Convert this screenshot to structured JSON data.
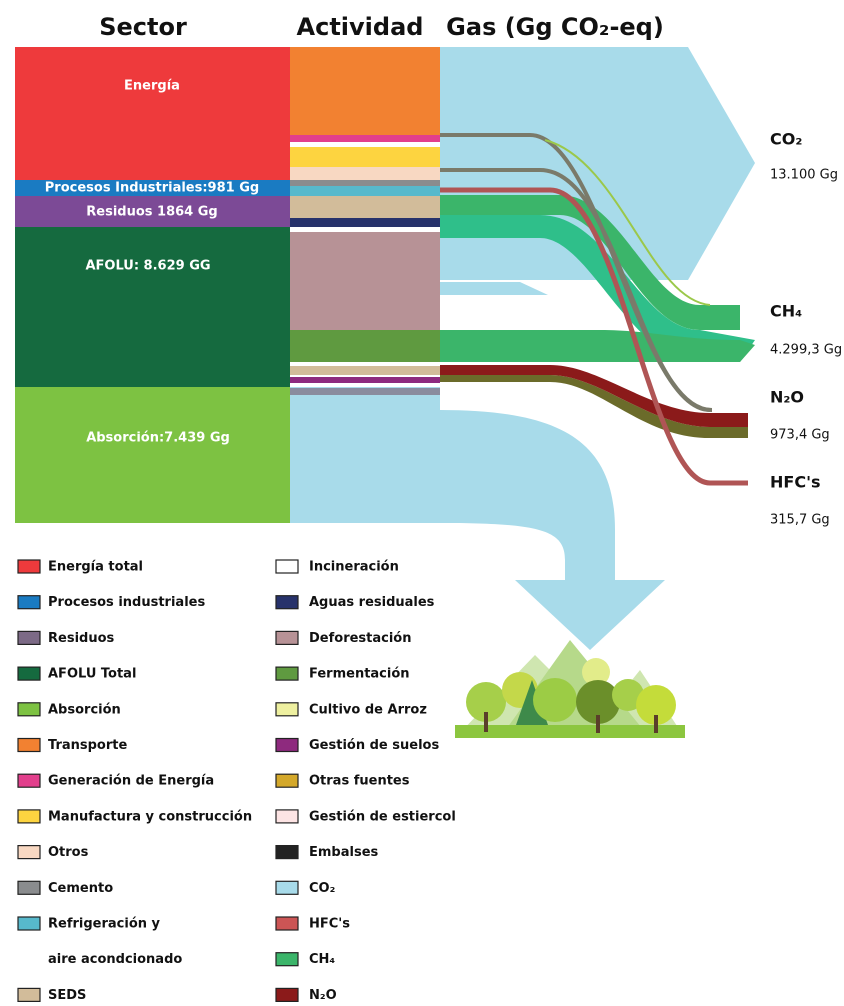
{
  "headers": [
    "Sector",
    "Actividad",
    "Gas (Gg CO₂-eq)"
  ],
  "sectors": [
    "Energía",
    "Procesos Industriales:981 Gg",
    "Residuos 1864 Gg",
    "AFOLU: 8.629 GG",
    "Absorción:7.439 Gg"
  ],
  "gases": [
    {
      "name": "CO₂",
      "value": "13.100 Gg"
    },
    {
      "name": "CH₄",
      "value": "4.299,3 Gg"
    },
    {
      "name": "N₂O",
      "value": "973,4 Gg"
    },
    {
      "name": "HFC's",
      "value": "315,7 Gg"
    }
  ],
  "legend": {
    "left": [
      {
        "label": "Energía total",
        "color": "#ee3a3c"
      },
      {
        "label": "Procesos industriales",
        "color": "#1a7bc2"
      },
      {
        "label": "Residuos",
        "color": "#7c6a86"
      },
      {
        "label": "AFOLU Total",
        "color": "#156a3f"
      },
      {
        "label": "Absorción",
        "color": "#7dc242"
      },
      {
        "label": "Transporte",
        "color": "#f28131"
      },
      {
        "label": "Generación de Energía",
        "color": "#e23f8c"
      },
      {
        "label": "Manufactura y construcción",
        "color": "#fdd440"
      },
      {
        "label": "Otros",
        "color": "#f8d8c2"
      },
      {
        "label": "Cemento",
        "color": "#8a8c8e"
      },
      {
        "label": "Refrigeración y",
        "color": "#57b9cc"
      },
      {
        "label": "aire acondcionado"
      },
      {
        "label": "SEDS",
        "color": "#d2bc9a"
      }
    ],
    "right": [
      {
        "label": "Incineración",
        "color": "#ffffff"
      },
      {
        "label": "Aguas residuales",
        "color": "#27326b"
      },
      {
        "label": "Deforestación",
        "color": "#b79296"
      },
      {
        "label": "Fermentación",
        "color": "#5f9a40"
      },
      {
        "label": "Cultivo de Arroz",
        "color": "#eef0a0"
      },
      {
        "label": "Gestión de suelos",
        "color": "#8e2a7e"
      },
      {
        "label": "Otras fuentes",
        "color": "#d4a82a"
      },
      {
        "label": "Gestión de estiercol",
        "color": "#fde4e4"
      },
      {
        "label": "Embalses",
        "color": "#222222"
      },
      {
        "label": "CO₂",
        "color": "#a8dbea"
      },
      {
        "label": "HFC's",
        "color": "#cc5555"
      },
      {
        "label": "CH₄",
        "color": "#3bb56a"
      },
      {
        "label": "N₂O",
        "color": "#8b1a1a"
      }
    ]
  }
}
